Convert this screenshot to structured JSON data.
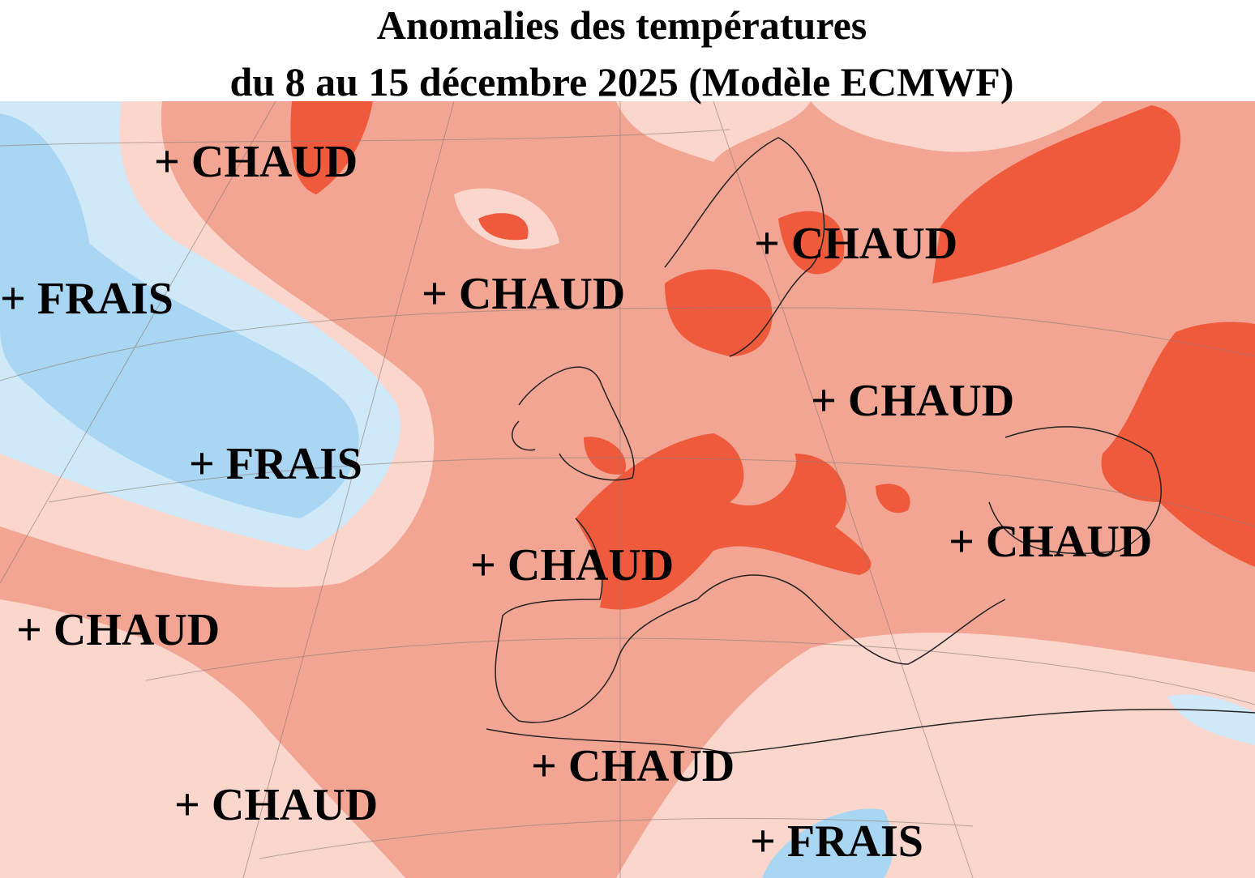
{
  "header": {
    "title_line1": "Anomalies des températures",
    "title_line2": "du 8 au 15 décembre 2025 (Modèle ECMWF)"
  },
  "labels": [
    "+ CHAUD",
    "+ FRAIS",
    "+ CHAUD",
    "+ CHAUD",
    "+ CHAUD",
    "+ FRAIS",
    "+ CHAUD",
    "+ CHAUD",
    "+ CHAUD",
    "+ CHAUD",
    "+ CHAUD",
    "+ FRAIS"
  ]
}
